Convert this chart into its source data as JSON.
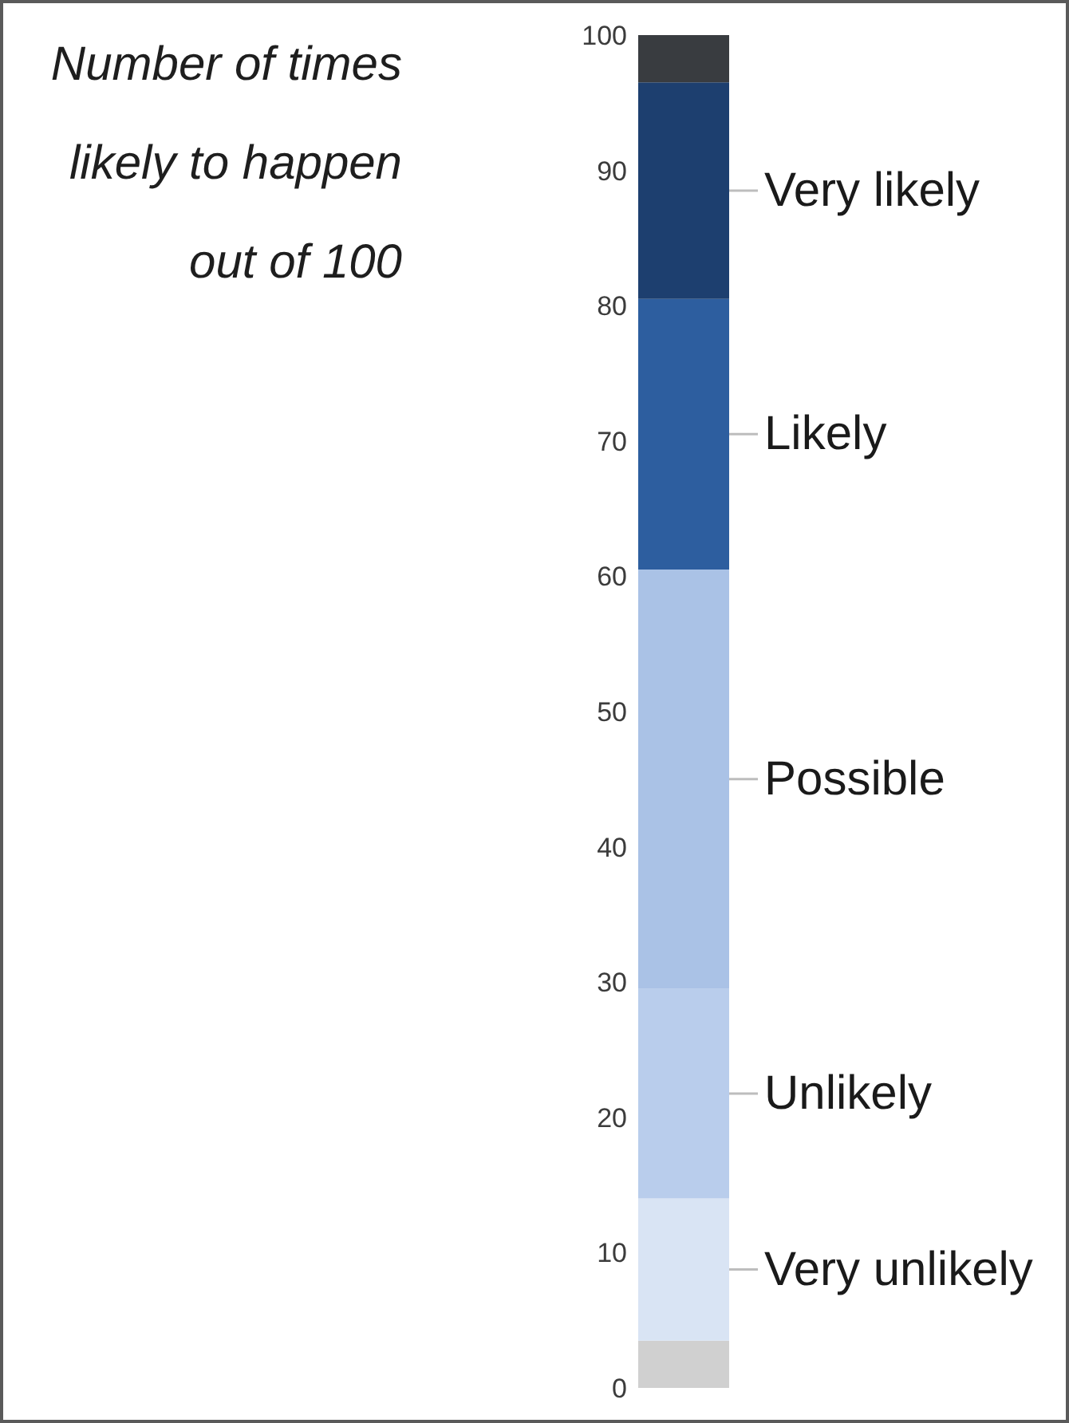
{
  "chart_data": {
    "type": "bar",
    "title": "Number of times likely to happen out of 100",
    "categories": [
      null
    ],
    "stacked": true,
    "series": [
      {
        "color": "#d0d0d0",
        "values": [
          3.5
        ]
      },
      {
        "name": "Very unlikely",
        "color": "#d9e4f4",
        "values": [
          10.5
        ]
      },
      {
        "name": "Unlikely",
        "color": "#b9cdec",
        "values": [
          15.5
        ]
      },
      {
        "name": "Possible",
        "color": "#aac2e6",
        "values": [
          31
        ]
      },
      {
        "name": "Likely",
        "color": "#2d5e9f",
        "values": [
          20
        ]
      },
      {
        "name": "Very likely",
        "color": "#1d3f6f",
        "values": [
          16
        ]
      },
      {
        "color": "#393c40",
        "values": [
          3.5
        ]
      }
    ],
    "ylim": [
      0,
      100
    ],
    "yticks": [
      0,
      10,
      20,
      30,
      40,
      50,
      60,
      70,
      80,
      90,
      100
    ]
  }
}
